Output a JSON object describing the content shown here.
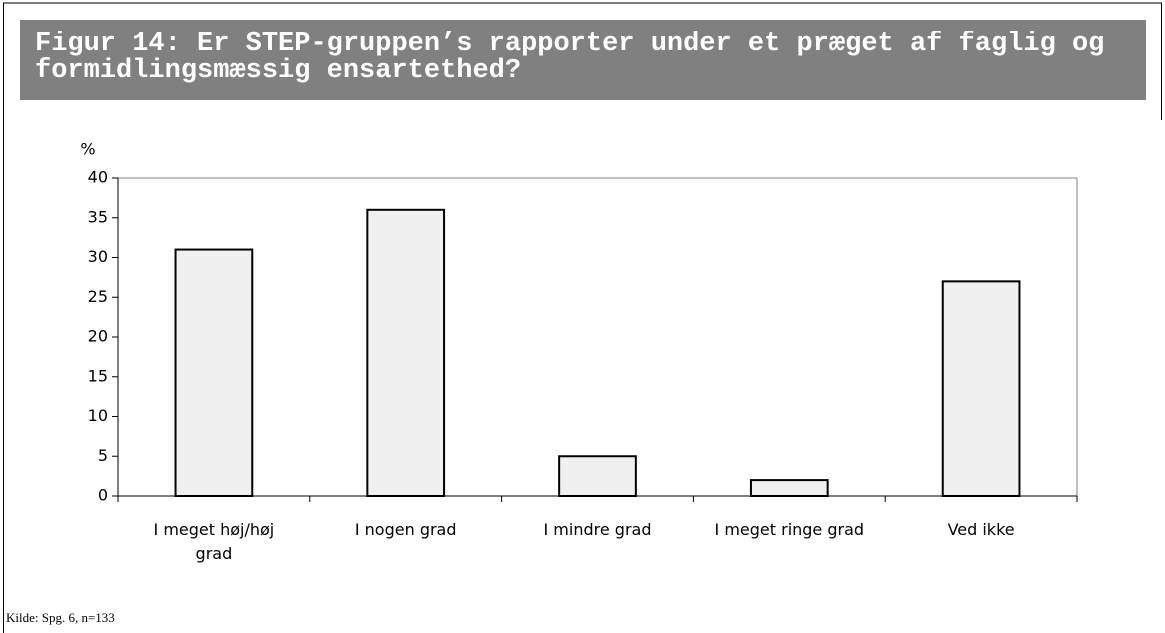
{
  "chart_data": {
    "type": "bar",
    "title": "Figur 14: Er STEP-gruppen’s rapporter under et præget af faglig og formidlingsmæssig ensartethed?",
    "y_label": "%",
    "categories": [
      "I meget høj/høj grad",
      "I nogen grad",
      "I mindre grad",
      "I meget ringe grad",
      "Ved ikke"
    ],
    "values": [
      31,
      36,
      5,
      2,
      27
    ],
    "color": "#f0f0f0",
    "ylim": [
      0,
      40
    ],
    "yticks": [
      0,
      5,
      10,
      15,
      20,
      25,
      30,
      35,
      40
    ],
    "grid": false,
    "source": "Kilde: Spg. 6, n=133"
  }
}
